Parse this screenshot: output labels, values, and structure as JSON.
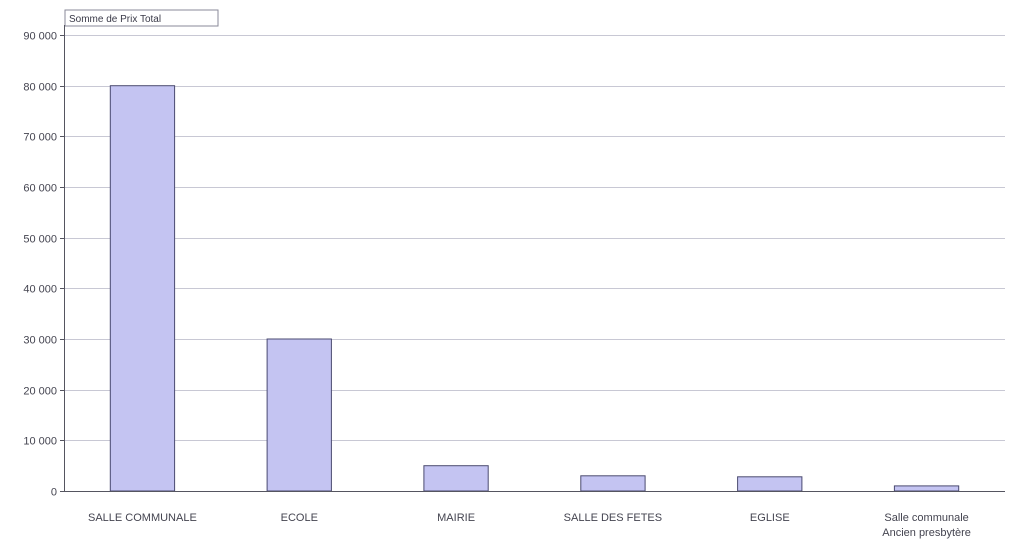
{
  "field_button": {
    "label": "Somme de Prix Total"
  },
  "colors": {
    "bar_fill": "#c4c4f2",
    "bar_stroke": "#4a4a70",
    "gridline": "#c8c8d4",
    "axis": "#555560"
  },
  "chart_data": {
    "type": "bar",
    "title": "",
    "xlabel": "",
    "ylabel": "",
    "ylim": [
      0,
      90000
    ],
    "yticks": [
      0,
      10000,
      20000,
      30000,
      40000,
      50000,
      60000,
      70000,
      80000,
      90000
    ],
    "ytick_labels": [
      "0",
      "10 000",
      "20 000",
      "30 000",
      "40 000",
      "50 000",
      "60 000",
      "70 000",
      "80 000",
      "90 000"
    ],
    "grid": true,
    "legend": "none",
    "categories": [
      "SALLE COMMUNALE",
      "ECOLE",
      "MAIRIE",
      "SALLE DES FETES",
      "EGLISE",
      "Salle communale Ancien presbytère"
    ],
    "category_label_lines": [
      [
        "SALLE COMMUNALE"
      ],
      [
        "ECOLE"
      ],
      [
        "MAIRIE"
      ],
      [
        "SALLE DES FETES"
      ],
      [
        "EGLISE"
      ],
      [
        "Salle communale",
        "Ancien presbytère"
      ]
    ],
    "values": [
      80000,
      30000,
      5000,
      3000,
      2800,
      1000
    ]
  }
}
